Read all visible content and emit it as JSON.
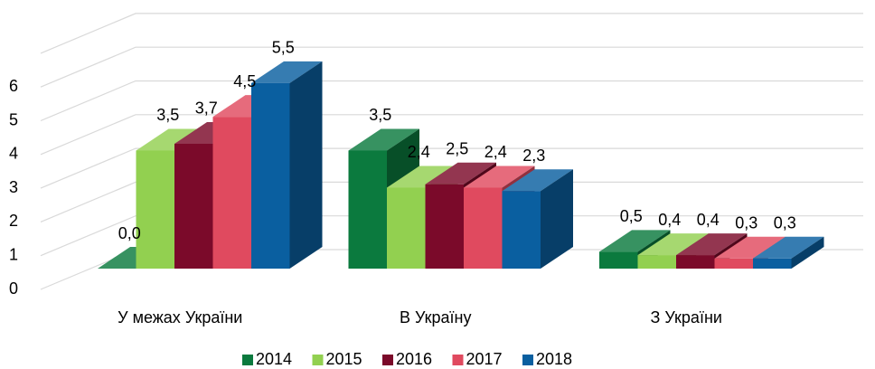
{
  "chart_data": {
    "type": "bar3d",
    "categories": [
      "У межах України",
      "В Україну",
      "З України"
    ],
    "series": [
      {
        "name": "2014",
        "color": "#0b7a3e",
        "values": [
          0.0,
          3.5,
          0.5
        ],
        "value_labels": [
          "0,0",
          "3,5",
          "0,5"
        ]
      },
      {
        "name": "2015",
        "color": "#92d050",
        "values": [
          3.5,
          2.4,
          0.4
        ],
        "value_labels": [
          "3,5",
          "2,4",
          "0,4"
        ]
      },
      {
        "name": "2016",
        "color": "#7b0a2a",
        "values": [
          3.7,
          2.5,
          0.4
        ],
        "value_labels": [
          "3,7",
          "2,5",
          "0,4"
        ]
      },
      {
        "name": "2017",
        "color": "#e04a5f",
        "values": [
          4.5,
          2.4,
          0.3
        ],
        "value_labels": [
          "4,5",
          "2,4",
          "0,3"
        ]
      },
      {
        "name": "2018",
        "color": "#0a5fa0",
        "values": [
          5.5,
          2.3,
          0.3
        ],
        "value_labels": [
          "5,5",
          "2,3",
          "0,3"
        ]
      }
    ],
    "ylim": [
      0,
      7
    ],
    "yticks": [
      0,
      1,
      2,
      3,
      4,
      5,
      6
    ],
    "grid": true,
    "legend": "bottom"
  }
}
